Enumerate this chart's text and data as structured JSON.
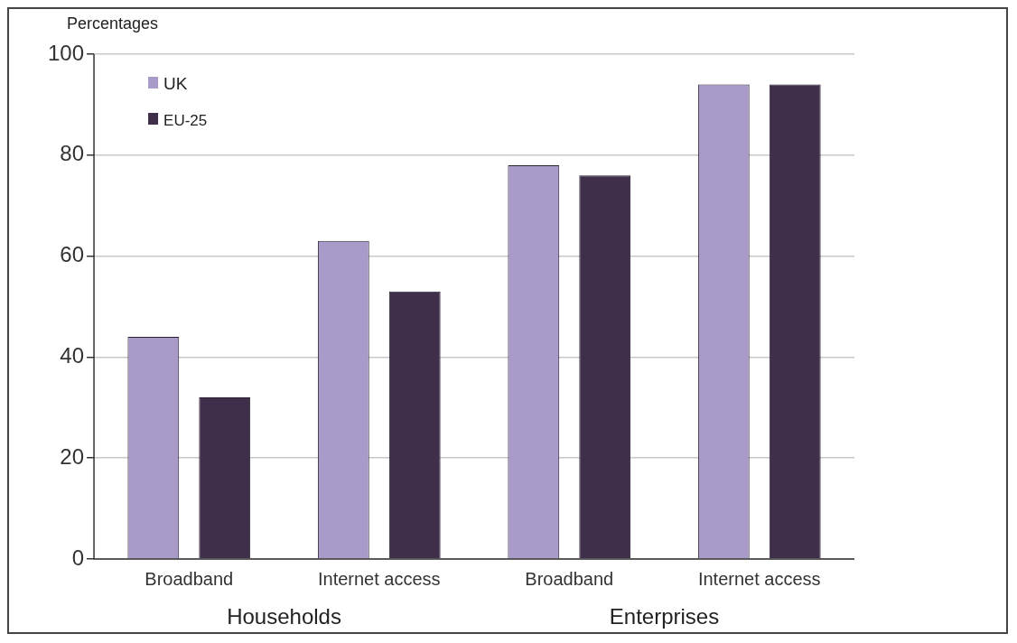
{
  "chart_data": {
    "type": "bar",
    "ylabel": "Percentages",
    "categories": [
      "Broadband",
      "Internet access",
      "Broadband",
      "Internet access"
    ],
    "series": [
      {
        "name": "UK",
        "color": "#a99bc9",
        "values": [
          44,
          63,
          78,
          94
        ]
      },
      {
        "name": "EU-25",
        "color": "#3f2f4b",
        "values": [
          32,
          53,
          76,
          94
        ]
      }
    ],
    "ylim": [
      0,
      100
    ],
    "yticks": [
      0,
      20,
      40,
      60,
      80,
      100
    ],
    "grid": "y",
    "legend": "top left",
    "annotations": [
      "Households",
      "Enterprises"
    ]
  }
}
